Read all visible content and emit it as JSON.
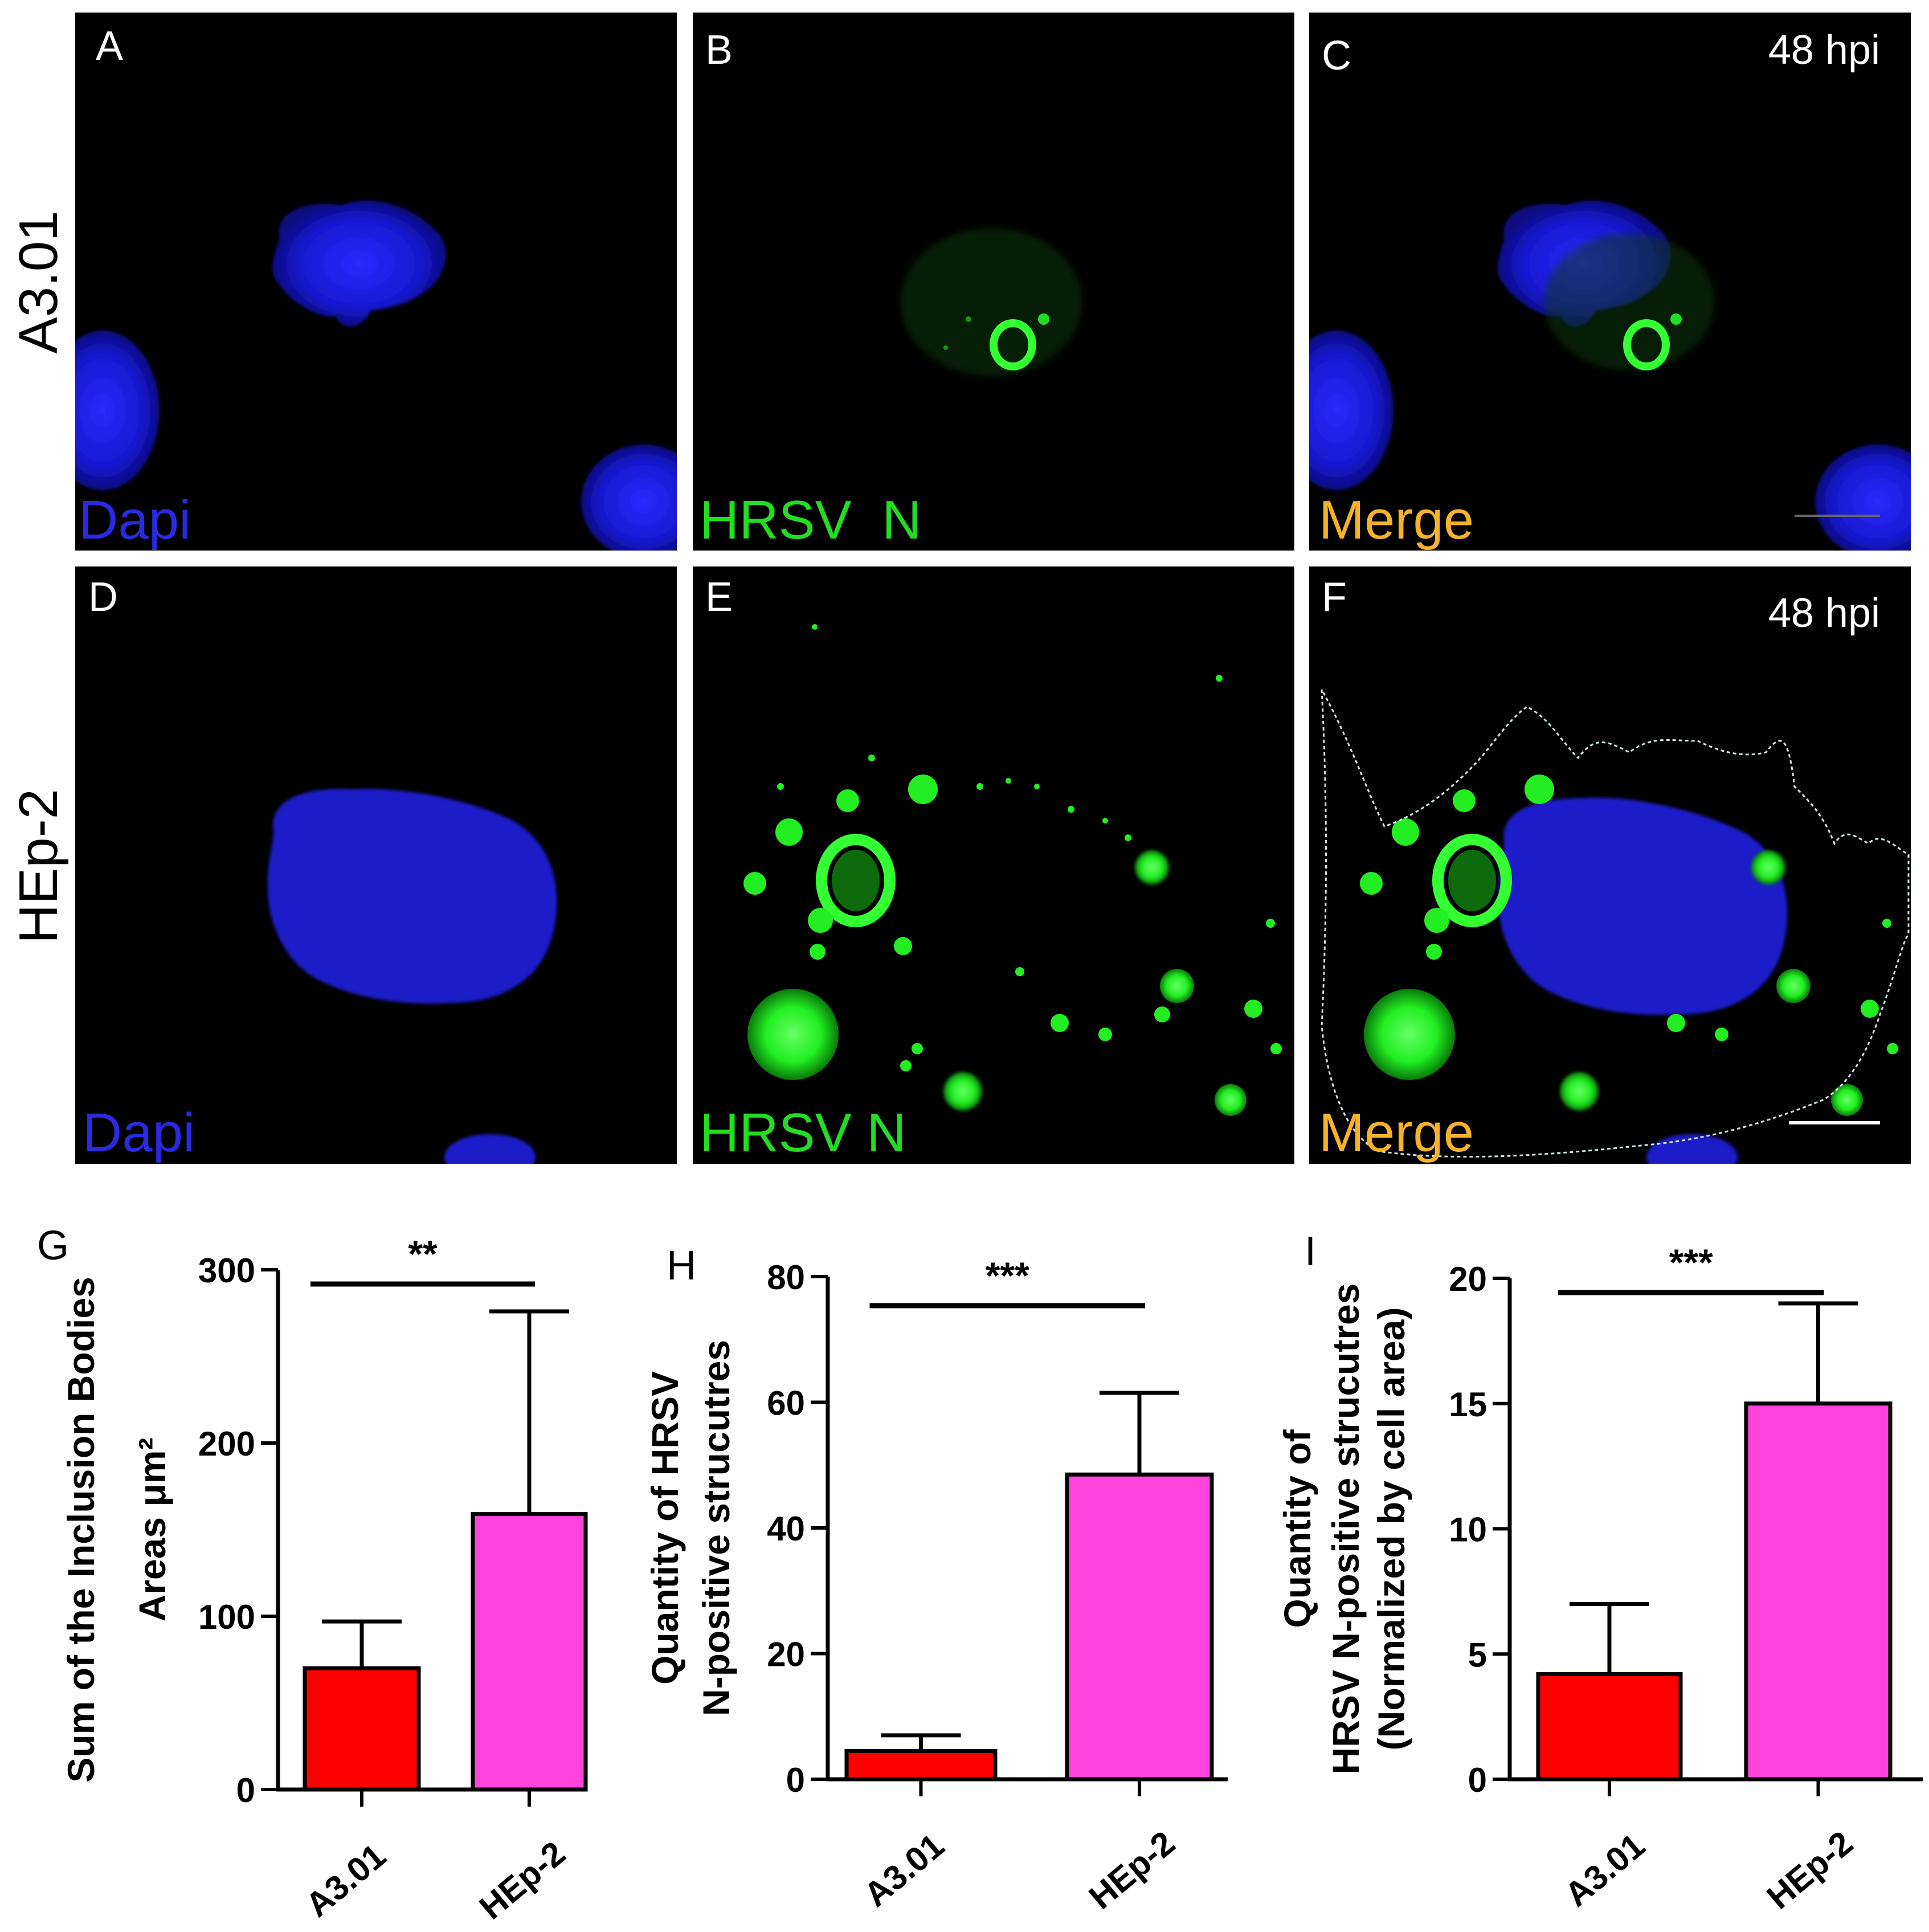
{
  "row_labels": [
    "A3.01",
    "HEp-2"
  ],
  "panels": [
    {
      "letter": "A",
      "channel": "Dapi",
      "channel_color": "#2a2ae0",
      "time": ""
    },
    {
      "letter": "B",
      "channel": "HRSV  N",
      "channel_color": "#22dd22",
      "time": ""
    },
    {
      "letter": "C",
      "channel": "Merge",
      "channel_color": "#f5b22a",
      "time": "48 hpi"
    },
    {
      "letter": "D",
      "channel": "Dapi",
      "channel_color": "#2a2ae0",
      "time": ""
    },
    {
      "letter": "E",
      "channel": "HRSV N",
      "channel_color": "#22dd22",
      "time": ""
    },
    {
      "letter": "F",
      "channel": "Merge",
      "channel_color": "#f5b22a",
      "time": "48 hpi"
    }
  ],
  "colors": {
    "dapi": "#1a1ad8",
    "hrsv_n": "#22ee22",
    "bar_a301": "#ff0000",
    "bar_hep2": "#ff44dd",
    "panel_bg": "#000000"
  },
  "chart_data": [
    {
      "panel": "G",
      "type": "bar",
      "categories": [
        "A3.01",
        "HEp-2"
      ],
      "values": [
        70,
        159
      ],
      "errors": [
        27,
        117
      ],
      "ylabel_lines": [
        "Sum of the Inclusion Bodies",
        "Areas μm²"
      ],
      "ylim": [
        0,
        300
      ],
      "yticks": [
        0,
        100,
        200,
        300
      ],
      "significance": "**",
      "grid": false
    },
    {
      "panel": "H",
      "type": "bar",
      "categories": [
        "A3.01",
        "HEp-2"
      ],
      "values": [
        4.5,
        48.5
      ],
      "errors": [
        2.5,
        13
      ],
      "ylabel_lines": [
        "Quantity of HRSV",
        "N-positive strucutres"
      ],
      "ylim": [
        0,
        80
      ],
      "yticks": [
        0,
        20,
        40,
        60,
        80
      ],
      "significance": "***",
      "grid": false
    },
    {
      "panel": "I",
      "type": "bar",
      "categories": [
        "A3.01",
        "HEp-2"
      ],
      "values": [
        4.2,
        15
      ],
      "errors": [
        2.8,
        4
      ],
      "ylabel_lines": [
        "Quantity of",
        "HRSV N-positive strucutres",
        "(Normalized by cell area)"
      ],
      "ylim": [
        0,
        20
      ],
      "yticks": [
        0,
        5,
        10,
        15,
        20
      ],
      "significance": "***",
      "grid": false
    }
  ]
}
